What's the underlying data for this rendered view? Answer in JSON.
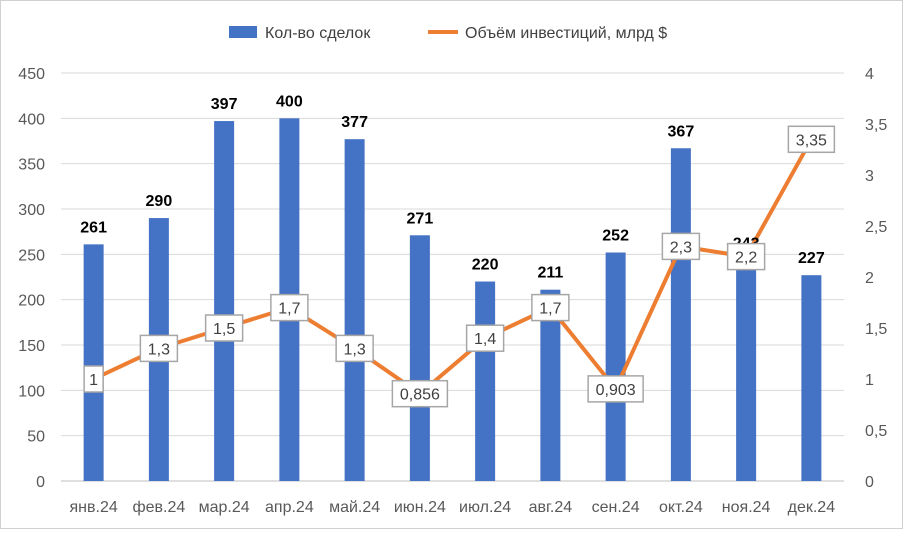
{
  "chart_data": {
    "type": "bar",
    "categories": [
      "янв.24",
      "фев.24",
      "мар.24",
      "апр.24",
      "май.24",
      "июн.24",
      "июл.24",
      "авг.24",
      "сен.24",
      "окт.24",
      "ноя.24",
      "дек.24"
    ],
    "series": [
      {
        "name": "Кол-во сделок",
        "type": "bar",
        "axis": "left",
        "color": "#4472C4",
        "values": [
          261,
          290,
          397,
          400,
          377,
          271,
          220,
          211,
          252,
          367,
          243,
          227
        ],
        "labels": [
          "261",
          "290",
          "397",
          "400",
          "377",
          "271",
          "220",
          "211",
          "252",
          "367",
          "243",
          "227"
        ]
      },
      {
        "name": "Объём инвестиций, млрд $",
        "type": "line",
        "axis": "right",
        "color": "#ED7D31",
        "values": [
          1,
          1.3,
          1.5,
          1.7,
          1.3,
          0.856,
          1.4,
          1.7,
          0.903,
          2.3,
          2.2,
          3.35
        ],
        "labels": [
          "1",
          "1,3",
          "1,5",
          "1,7",
          "1,3",
          "0,856",
          "1,4",
          "1,7",
          "0,903",
          "2,3",
          "2,2",
          "3,35"
        ]
      }
    ],
    "y_left": {
      "ylim": [
        0,
        450
      ],
      "ticks": [
        "0",
        "50",
        "100",
        "150",
        "200",
        "250",
        "300",
        "350",
        "400",
        "450"
      ]
    },
    "y_right": {
      "ylim": [
        0,
        4
      ],
      "ticks": [
        "0",
        "0,5",
        "1",
        "1,5",
        "2",
        "2,5",
        "3",
        "3,5",
        "4"
      ]
    },
    "grid": true,
    "legend_position": "top"
  }
}
